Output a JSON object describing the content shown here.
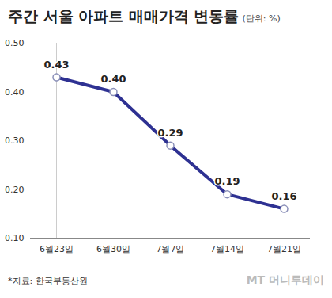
{
  "chart_data": {
    "type": "line",
    "title": "주간 서울 아파트 매매가격 변동률",
    "subtitle": "(단위: %)",
    "source": "*자료: 한국부동산원",
    "credit": "MT 머니투데이",
    "categories": [
      "6월23일",
      "6월30일",
      "7월7일",
      "7월14일",
      "7월21일"
    ],
    "values": [
      0.43,
      0.4,
      0.29,
      0.19,
      0.16
    ],
    "value_labels": [
      "0.43",
      "0.40",
      "0.29",
      "0.19",
      "0.16"
    ],
    "color": "#2e3192",
    "marker": "circle",
    "ylim": [
      0.1,
      0.5
    ],
    "yticks": [
      0.1,
      0.2,
      0.3,
      0.4,
      0.5
    ],
    "grid": false,
    "data_labels": true
  }
}
